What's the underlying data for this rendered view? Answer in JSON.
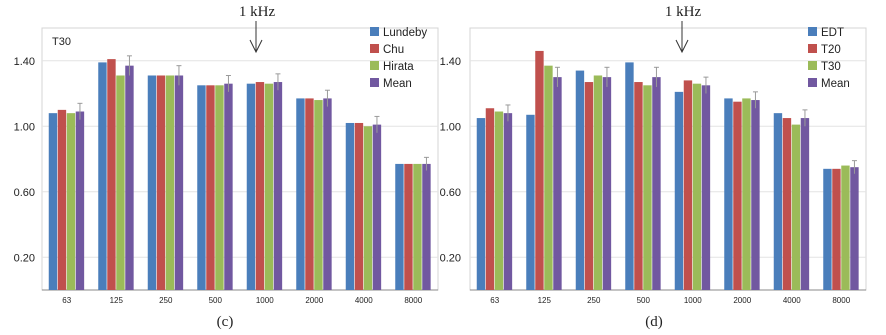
{
  "chart_data": [
    {
      "type": "bar",
      "panel_label": "(c)",
      "inner_label": "T30",
      "annotation": "1 kHz",
      "categories": [
        "63",
        "125",
        "250",
        "500",
        "1000",
        "2000",
        "4000",
        "8000"
      ],
      "ylim": [
        0,
        1.6
      ],
      "yticks": [
        "0.20",
        "0.60",
        "1.00",
        "1.40"
      ],
      "ytick_values": [
        0.2,
        0.6,
        1.0,
        1.4
      ],
      "legend_position": "top-right",
      "series": [
        {
          "name": "Lundeby",
          "color": "#4a7ebb",
          "values": [
            1.08,
            1.39,
            1.31,
            1.25,
            1.26,
            1.17,
            1.02,
            0.77
          ]
        },
        {
          "name": "Chu",
          "color": "#c0504d",
          "values": [
            1.1,
            1.41,
            1.31,
            1.25,
            1.27,
            1.17,
            1.02,
            0.77
          ]
        },
        {
          "name": "Hirata",
          "color": "#9bbb59",
          "values": [
            1.08,
            1.31,
            1.31,
            1.25,
            1.26,
            1.16,
            1.0,
            0.77
          ]
        },
        {
          "name": "Mean",
          "color": "#7158a0",
          "values": [
            1.09,
            1.37,
            1.31,
            1.26,
            1.27,
            1.17,
            1.01,
            0.77
          ],
          "errors": [
            0.05,
            0.06,
            0.06,
            0.05,
            0.05,
            0.05,
            0.05,
            0.04
          ]
        }
      ]
    },
    {
      "type": "bar",
      "panel_label": "(d)",
      "annotation": "1 kHz",
      "categories": [
        "63",
        "125",
        "250",
        "500",
        "1000",
        "2000",
        "4000",
        "8000"
      ],
      "ylim": [
        0,
        1.6
      ],
      "yticks": [
        "0.20",
        "0.60",
        "1.00",
        "1.40"
      ],
      "ytick_values": [
        0.2,
        0.6,
        1.0,
        1.4
      ],
      "legend_position": "top-right",
      "series": [
        {
          "name": "EDT",
          "color": "#4a7ebb",
          "values": [
            1.05,
            1.07,
            1.34,
            1.39,
            1.21,
            1.17,
            1.08,
            0.74
          ]
        },
        {
          "name": "T20",
          "color": "#c0504d",
          "values": [
            1.11,
            1.46,
            1.27,
            1.27,
            1.28,
            1.15,
            1.05,
            0.74
          ]
        },
        {
          "name": "T30",
          "color": "#9bbb59",
          "values": [
            1.09,
            1.37,
            1.31,
            1.25,
            1.26,
            1.17,
            1.01,
            0.76
          ]
        },
        {
          "name": "Mean",
          "color": "#7158a0",
          "values": [
            1.08,
            1.3,
            1.3,
            1.3,
            1.25,
            1.16,
            1.05,
            0.75
          ],
          "errors": [
            0.05,
            0.06,
            0.06,
            0.06,
            0.05,
            0.05,
            0.05,
            0.04
          ]
        }
      ]
    }
  ]
}
